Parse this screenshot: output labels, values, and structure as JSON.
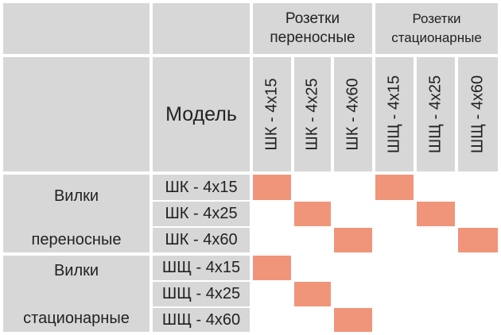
{
  "group_portable": [
    "Розетки",
    "переносные"
  ],
  "group_stationary": [
    "Розетки",
    "стационарные"
  ],
  "model_label": "Модель",
  "socket_columns": [
    "ШК - 4х15",
    "ШК - 4х25",
    "ШК - 4х60",
    "ШЩ - 4х15",
    "ШЩ - 4х25",
    "ШЩ - 4х60"
  ],
  "plug_groups": [
    {
      "line1": "Вилки",
      "line2": "переносные"
    },
    {
      "line1": "Вилки",
      "line2": "стационарные"
    }
  ],
  "plug_rows": [
    "ШК - 4х15",
    "ШК - 4х25",
    "ШК - 4х60",
    "ШЩ - 4х15",
    "ШЩ - 4х25",
    "ШЩ - 4х60"
  ],
  "compatibility": [
    [
      1,
      0,
      0,
      1,
      0,
      0
    ],
    [
      0,
      1,
      0,
      0,
      1,
      0
    ],
    [
      0,
      0,
      1,
      0,
      0,
      1
    ],
    [
      1,
      0,
      0,
      0,
      0,
      0
    ],
    [
      0,
      1,
      0,
      0,
      0,
      0
    ],
    [
      0,
      0,
      1,
      0,
      0,
      0
    ]
  ],
  "colors": {
    "header_gray": "#d7d7d7",
    "match_fill": "#f0957a",
    "empty_fill": "#ffffff"
  }
}
